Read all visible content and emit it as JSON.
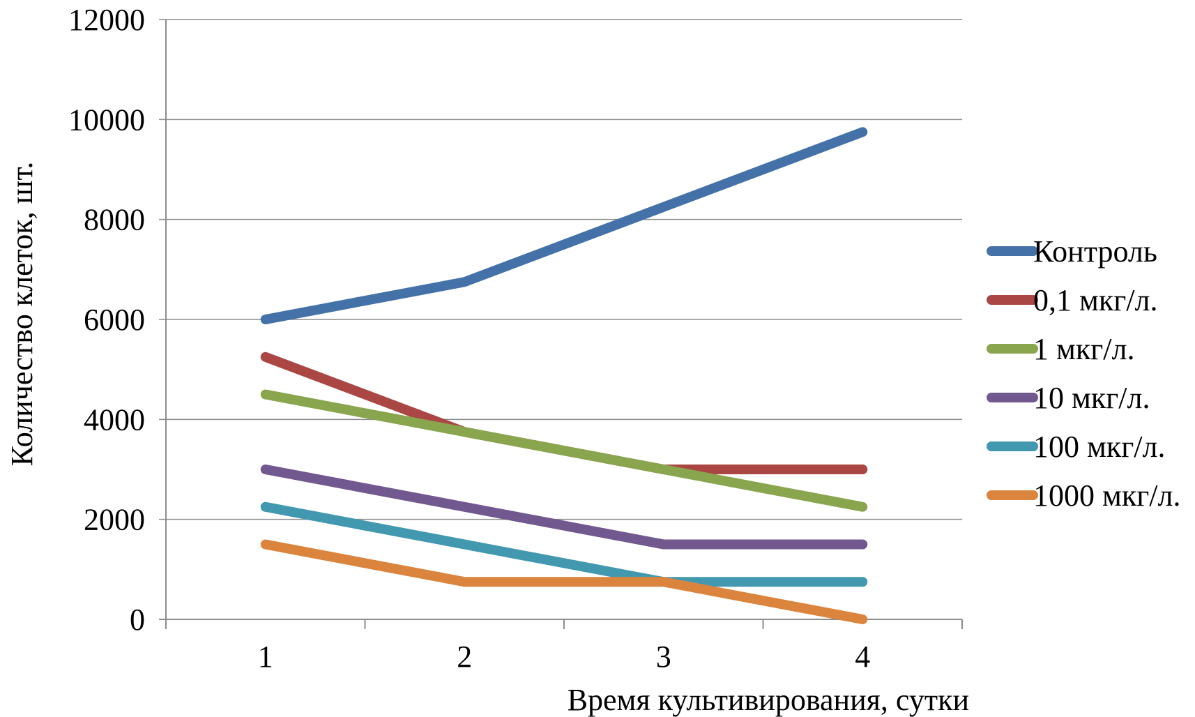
{
  "chart_data": {
    "type": "line",
    "title": "",
    "xlabel": "Время культивирования, сутки",
    "ylabel": "Количество клеток, шт.",
    "categories": [
      "1",
      "2",
      "3",
      "4"
    ],
    "ylim": [
      0,
      12000
    ],
    "yticks": [
      "0",
      "2000",
      "4000",
      "6000",
      "8000",
      "10000",
      "12000"
    ],
    "grid": true,
    "legend_position": "right",
    "series": [
      {
        "name": "Контроль",
        "color": "#4472a8",
        "values": [
          6000,
          6750,
          8250,
          9750
        ]
      },
      {
        "name": "0,1 мкг/л.",
        "color": "#aa4643",
        "values": [
          5250,
          3750,
          3000,
          3000
        ]
      },
      {
        "name": "1 мкг/л.",
        "color": "#89a54e",
        "values": [
          4500,
          3750,
          3000,
          2250
        ]
      },
      {
        "name": "10 мкг/л.",
        "color": "#71588f",
        "values": [
          3000,
          2250,
          1500,
          1500
        ]
      },
      {
        "name": "100 мкг/л.",
        "color": "#4198af",
        "values": [
          2250,
          1500,
          750,
          750
        ]
      },
      {
        "name": "1000 мкг/л.",
        "color": "#db843d",
        "values": [
          1500,
          750,
          750,
          0
        ]
      }
    ]
  }
}
